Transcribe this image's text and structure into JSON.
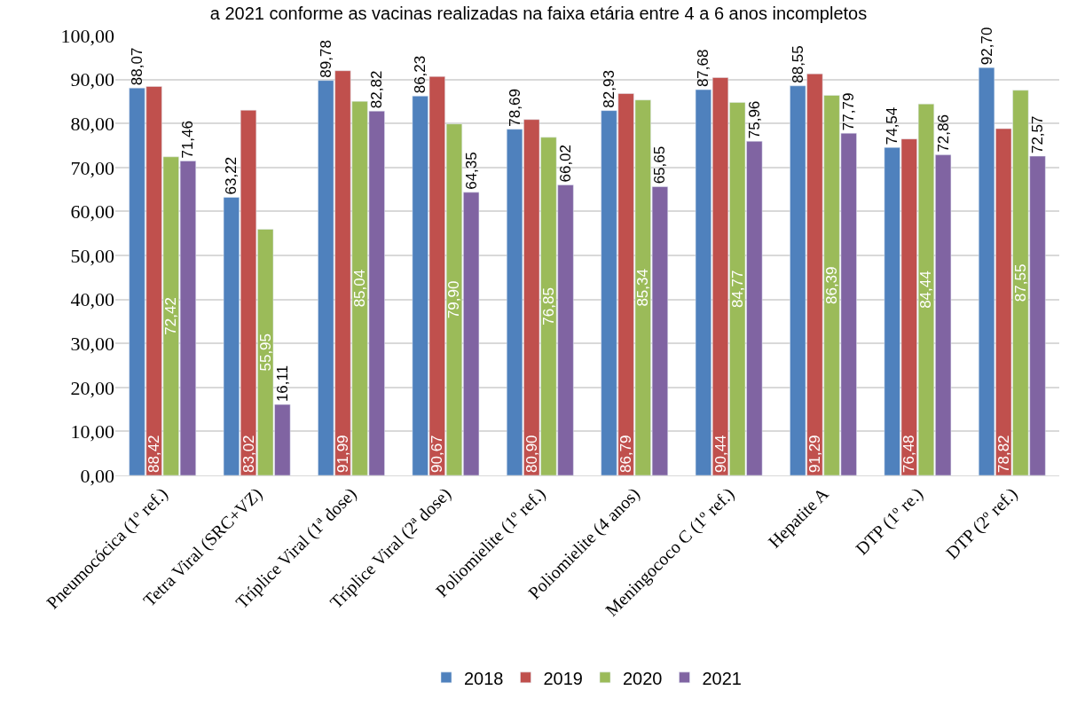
{
  "chart_data": {
    "type": "bar",
    "title": "a 2021 conforme as vacinas realizadas na faixa etária entre 4 a 6 anos incompletos",
    "categories": [
      "Pneumocócica (1º ref.)",
      "Tetra Viral (SRC+VZ)",
      "Tríplice Viral (1ª dose)",
      "Tríplice Viral (2ª dose)",
      "Poliomielite (1º ref.)",
      "Poliomielite (4 anos)",
      "Meningococo C (1º ref.)",
      "Hepatite A",
      "DTP (1º re.)",
      "DTP (2º ref.)"
    ],
    "series": [
      {
        "name": "2018",
        "color": "#4f81bd",
        "values": [
          88.07,
          63.22,
          89.78,
          86.23,
          78.69,
          82.93,
          87.68,
          88.55,
          74.54,
          92.7
        ],
        "value_labels": [
          "88,07",
          "63,22",
          "89,78",
          "86,23",
          "78,69",
          "82,93",
          "87,68",
          "88,55",
          "74,54",
          "92,70"
        ]
      },
      {
        "name": "2019",
        "color": "#c0504d",
        "values": [
          88.42,
          83.02,
          91.99,
          90.67,
          80.9,
          86.79,
          90.44,
          91.29,
          76.48,
          78.82
        ],
        "value_labels": [
          "88,42",
          "83,02",
          "91,99",
          "90,67",
          "80,90",
          "86,79",
          "90,44",
          "91,29",
          "76,48",
          "78,82"
        ]
      },
      {
        "name": "2020",
        "color": "#9bbb59",
        "values": [
          72.42,
          55.95,
          85.04,
          79.9,
          76.85,
          85.34,
          84.77,
          86.39,
          84.44,
          87.55
        ],
        "value_labels": [
          "72,42",
          "55,95",
          "85,04",
          "79,90",
          "76,85",
          "85,34",
          "84,77",
          "86,39",
          "84,44",
          "87,55"
        ]
      },
      {
        "name": "2021",
        "color": "#8064a2",
        "values": [
          71.46,
          16.11,
          82.82,
          64.35,
          66.02,
          65.65,
          75.96,
          77.79,
          72.86,
          72.57
        ],
        "value_labels": [
          "71,46",
          "16,11",
          "82,82",
          "64,35",
          "66,02",
          "65,65",
          "75,96",
          "77,79",
          "72,86",
          "72,57"
        ]
      }
    ],
    "ylim": [
      0,
      100
    ],
    "yticks": [
      {
        "value": 0,
        "label": "0,00"
      },
      {
        "value": 10,
        "label": "10,00"
      },
      {
        "value": 20,
        "label": "20,00"
      },
      {
        "value": 30,
        "label": "30,00"
      },
      {
        "value": 40,
        "label": "40,00"
      },
      {
        "value": 50,
        "label": "50,00"
      },
      {
        "value": 60,
        "label": "60,00"
      },
      {
        "value": 70,
        "label": "70,00"
      },
      {
        "value": 80,
        "label": "80,00"
      },
      {
        "value": 90,
        "label": "90,00"
      },
      {
        "value": 100,
        "label": "100,00"
      }
    ],
    "grid": "y",
    "legend": "bottom"
  }
}
